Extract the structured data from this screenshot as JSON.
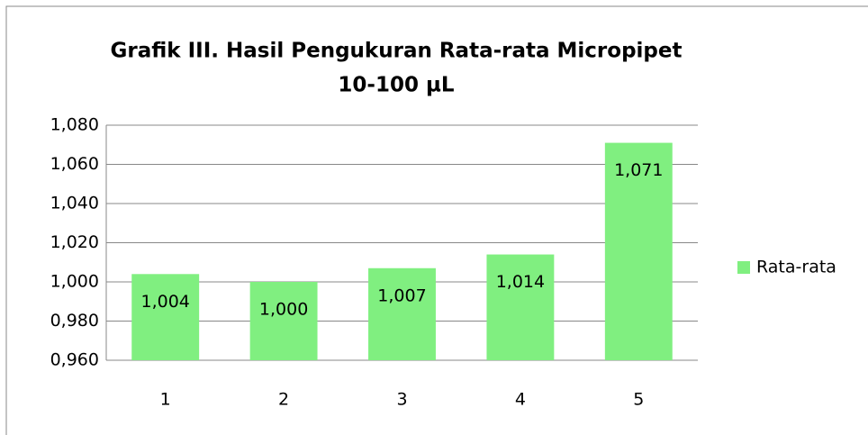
{
  "chart_data": {
    "type": "bar",
    "title": [
      "Grafik III.  Hasil Pengukuran Rata-rata Micropipet",
      "10-100 µL"
    ],
    "categories": [
      "1",
      "2",
      "3",
      "4",
      "5"
    ],
    "series": [
      {
        "name": "Rata-rata",
        "color": "#80ef80",
        "values": [
          1.004,
          1.0,
          1.007,
          1.014,
          1.071
        ],
        "value_labels": [
          "1,004",
          "1,000",
          "1,007",
          "1,014",
          "1,071"
        ]
      }
    ],
    "ylim": [
      0.96,
      1.08
    ],
    "yticks": [
      {
        "value": 0.96,
        "label": "0,960"
      },
      {
        "value": 0.98,
        "label": "0,980"
      },
      {
        "value": 1.0,
        "label": "1,000"
      },
      {
        "value": 1.02,
        "label": "1,020"
      },
      {
        "value": 1.04,
        "label": "1,040"
      },
      {
        "value": 1.06,
        "label": "1,060"
      },
      {
        "value": 1.08,
        "label": "1,080"
      }
    ],
    "grid": true,
    "legend": "right"
  }
}
